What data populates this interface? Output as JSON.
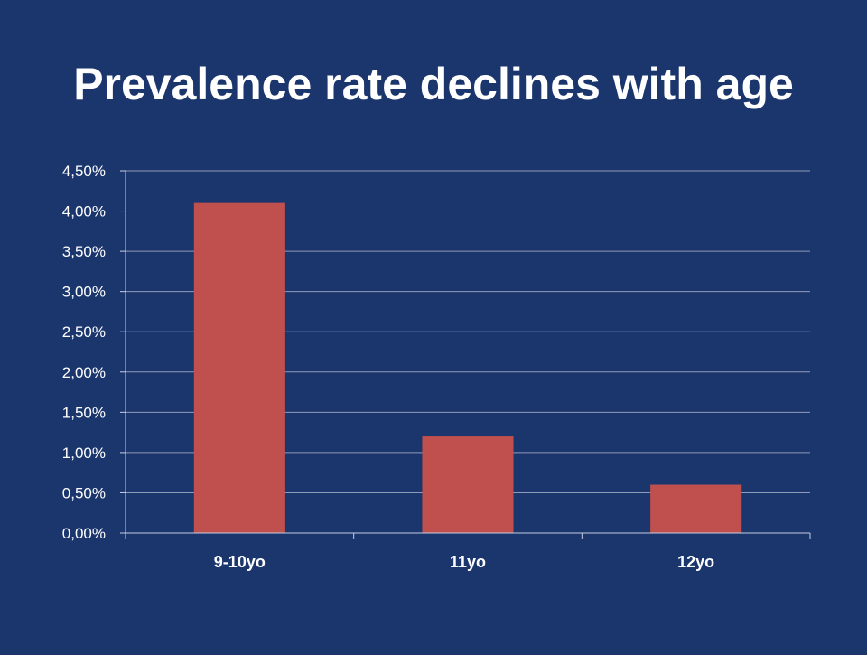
{
  "slide": {
    "title": "Prevalence rate declines with age"
  },
  "colors": {
    "background": "#1b356d",
    "bar": "#c0504d",
    "gridline": "#8e9bb8",
    "axis": "#c8d0e0",
    "text": "#ffffff"
  },
  "chart_data": {
    "type": "bar",
    "categories": [
      "9-10yo",
      "11yo",
      "12yo"
    ],
    "values": [
      0.041,
      0.012,
      0.006
    ],
    "ylim": [
      0,
      0.045
    ],
    "yticks": [
      {
        "value": 0.0,
        "label": "0,00%"
      },
      {
        "value": 0.005,
        "label": "0,50%"
      },
      {
        "value": 0.01,
        "label": "1,00%"
      },
      {
        "value": 0.015,
        "label": "1,50%"
      },
      {
        "value": 0.02,
        "label": "2,00%"
      },
      {
        "value": 0.025,
        "label": "2,50%"
      },
      {
        "value": 0.03,
        "label": "3,00%"
      },
      {
        "value": 0.035,
        "label": "3,50%"
      },
      {
        "value": 0.04,
        "label": "4,00%"
      },
      {
        "value": 0.045,
        "label": "4,50%"
      }
    ],
    "grid": true,
    "legend": "none"
  }
}
